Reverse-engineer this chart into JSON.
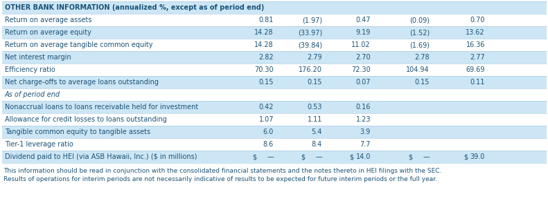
{
  "title": "OTHER BANK INFORMATION (annualized %, except as of period end)",
  "bg_light": "#cce0f0",
  "bg_white": "#ffffff",
  "text_color": "#1a5276",
  "rows": [
    {
      "label": "Return on average assets",
      "values": [
        "0.81",
        "(1.97)",
        "0.47",
        "(0.09)",
        "0.70"
      ],
      "bg": "white"
    },
    {
      "label": "Return on average equity",
      "values": [
        "14.28",
        "(33.97)",
        "9.19",
        "(1.52)",
        "13.62"
      ],
      "bg": "light"
    },
    {
      "label": "Return on average tangible common equity",
      "values": [
        "14.28",
        "(39.84)",
        "11.02",
        "(1.69)",
        "16.36"
      ],
      "bg": "white"
    },
    {
      "label": "Net interest margin",
      "values": [
        "2.82",
        "2.79",
        "2.70",
        "2.78",
        "2.77"
      ],
      "bg": "light"
    },
    {
      "label": "Efficiency ratio",
      "values": [
        "70.30",
        "176.20",
        "72.30",
        "104.94",
        "69.69"
      ],
      "bg": "white"
    },
    {
      "label": "Net charge-offs to average loans outstanding",
      "values": [
        "0.15",
        "0.15",
        "0.07",
        "0.15",
        "0.11"
      ],
      "bg": "light"
    },
    {
      "label": "As of period end",
      "values": [
        "",
        "",
        "",
        "",
        ""
      ],
      "bg": "white",
      "section": true
    },
    {
      "label": "Nonaccrual loans to loans receivable held for investment",
      "values": [
        "0.42",
        "0.53",
        "0.16",
        "",
        ""
      ],
      "bg": "light"
    },
    {
      "label": "Allowance for credit losses to loans outstanding",
      "values": [
        "1.07",
        "1.11",
        "1.23",
        "",
        ""
      ],
      "bg": "white"
    },
    {
      "label": "Tangible common equity to tangible assets",
      "values": [
        "6.0",
        "5.4",
        "3.9",
        "",
        ""
      ],
      "bg": "light"
    },
    {
      "label": "Tier-1 leverage ratio",
      "values": [
        "8.6",
        "8.4",
        "7.7",
        "",
        ""
      ],
      "bg": "white"
    },
    {
      "label": "Dividend paid to HEI (via ASB Hawaii, Inc.) ($ in millions)",
      "values": [
        "",
        "",
        "",
        "",
        ""
      ],
      "bg": "light",
      "dividend": true,
      "dollar_cols": [
        0,
        1,
        2,
        3,
        4
      ],
      "div_vals": [
        "—",
        "—",
        "14.0",
        "—",
        "39.0"
      ]
    }
  ],
  "footer_line1": "This information should be read in conjunction with the consolidated financial statements and the notes thereto in HEI filings with the SEC.",
  "footer_line2": "Results of operations for interim periods are not necessarily indicative of results to be expected for future interim periods or the full year.",
  "figsize": [
    7.91,
    3.04
  ],
  "dpi": 100
}
